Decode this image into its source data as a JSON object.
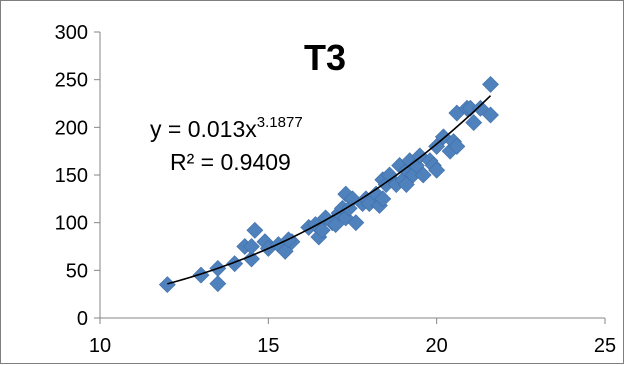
{
  "chart_data": {
    "type": "scatter",
    "title": "T3",
    "xlabel": "",
    "ylabel": "",
    "xlim": [
      10,
      25
    ],
    "ylim": [
      0,
      300
    ],
    "x_ticks": [
      10,
      15,
      20,
      25
    ],
    "y_ticks": [
      0,
      50,
      100,
      150,
      200,
      250,
      300
    ],
    "grid": false,
    "marker_color": "#4f81bd",
    "trendline": {
      "type": "power",
      "coefficient": 0.013,
      "exponent": 3.1877,
      "equation_prefix": "y = 0.013x",
      "equation_exponent": "3.1877",
      "r_squared_label": "R² = 0.9409",
      "x_range": [
        12,
        21.6
      ]
    },
    "series": [
      {
        "x": [
          12.0,
          13.0,
          13.5,
          13.5,
          14.0,
          14.3,
          14.5,
          14.6,
          14.5,
          14.9,
          15.0,
          15.3,
          15.5,
          15.7,
          15.6,
          16.2,
          16.4,
          16.5,
          16.6,
          16.7,
          16.9,
          17.0,
          17.1,
          17.2,
          17.3,
          17.3,
          17.4,
          17.5,
          17.6,
          17.8,
          17.9,
          18.0,
          18.2,
          18.3,
          18.4,
          18.4,
          18.5,
          18.6,
          18.8,
          18.9,
          19.0,
          19.1,
          19.1,
          19.2,
          19.3,
          19.4,
          19.5,
          19.6,
          19.8,
          19.9,
          20.0,
          20.0,
          20.2,
          20.4,
          20.5,
          20.6,
          20.6,
          20.9,
          21.0,
          21.1,
          21.3,
          21.6,
          21.6
        ],
        "y": [
          35,
          45,
          36,
          52,
          57,
          75,
          62,
          92,
          75,
          80,
          73,
          77,
          70,
          80,
          82,
          95,
          98,
          85,
          92,
          105,
          100,
          98,
          110,
          115,
          105,
          130,
          115,
          125,
          100,
          120,
          125,
          120,
          130,
          118,
          125,
          145,
          140,
          150,
          140,
          160,
          145,
          155,
          140,
          165,
          150,
          160,
          170,
          150,
          165,
          160,
          180,
          155,
          190,
          175,
          185,
          180,
          215,
          220,
          220,
          205,
          220,
          245,
          213
        ]
      }
    ]
  }
}
